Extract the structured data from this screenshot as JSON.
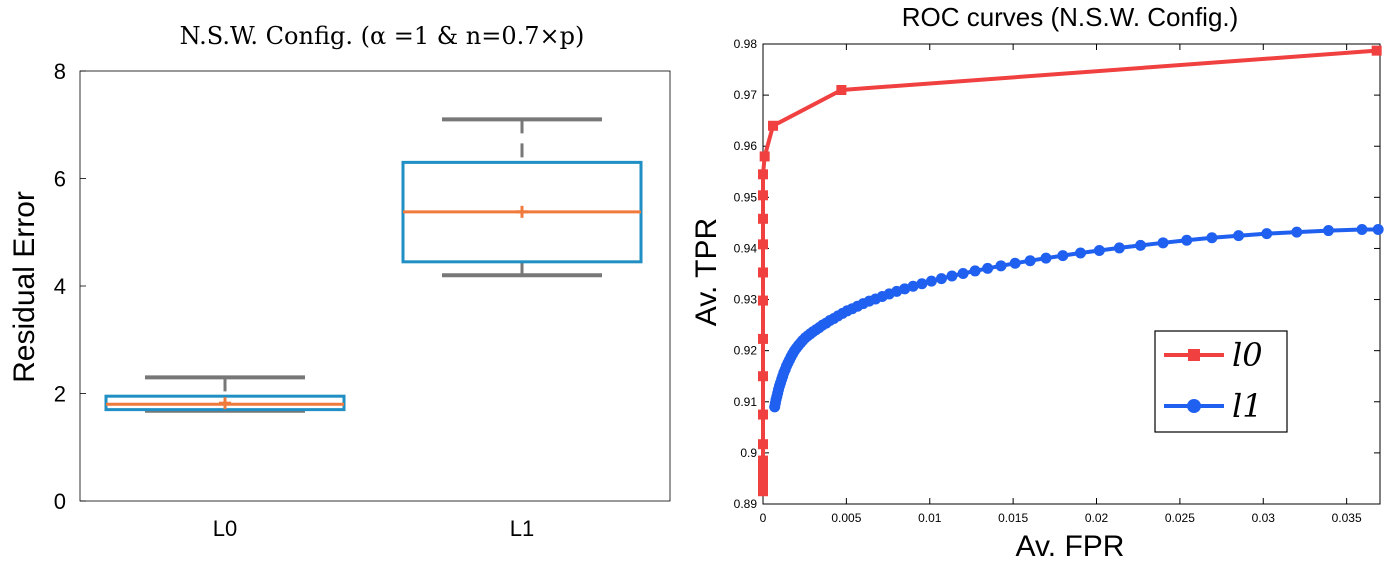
{
  "chart_data": [
    {
      "type": "box",
      "title": "N.S.W. Config. (α =1 & n=0.7×p)",
      "ylabel": "Residual Error",
      "xlabel": "",
      "ylim": [
        0,
        8
      ],
      "yticks": [
        "0",
        "2",
        "4",
        "6",
        "8"
      ],
      "categories": [
        "L0",
        "L1"
      ],
      "boxes": [
        {
          "name": "L0",
          "whisker_low": 1.68,
          "q1": 1.7,
          "median": 1.8,
          "mean": 1.82,
          "q3": 1.95,
          "whisker_high": 2.3
        },
        {
          "name": "L1",
          "whisker_low": 4.2,
          "q1": 4.45,
          "median": 5.38,
          "mean": 5.38,
          "q3": 6.3,
          "whisker_high": 7.1
        }
      ],
      "colors": {
        "box": "#1f8fc4",
        "median": "#f07a3c",
        "whisker": "#777777"
      }
    },
    {
      "type": "line",
      "title": "ROC curves (N.S.W. Config.)",
      "xlabel": "Av. FPR",
      "ylabel": "Av. TPR",
      "xlim": [
        0,
        0.037
      ],
      "ylim": [
        0.89,
        0.98
      ],
      "xticks": [
        "0",
        "0.005",
        "0.01",
        "0.015",
        "0.02",
        "0.025",
        "0.03",
        "0.035"
      ],
      "yticks": [
        "0.89",
        "0.9",
        "0.91",
        "0.92",
        "0.93",
        "0.94",
        "0.95",
        "0.96",
        "0.97",
        "0.98"
      ],
      "legend_position": "bottom-right",
      "series": [
        {
          "name": "l0",
          "color": "#f04040",
          "marker": "square",
          "x": [
            0,
            0,
            0,
            0,
            0,
            0,
            0,
            0,
            0,
            0,
            0,
            0,
            0,
            0,
            0,
            0.0001,
            0.0006,
            0.0047,
            0.0368
          ],
          "y": [
            0.8925,
            0.894,
            0.8955,
            0.897,
            0.8985,
            0.9017,
            0.9075,
            0.915,
            0.9223,
            0.9298,
            0.9353,
            0.9408,
            0.9458,
            0.9504,
            0.9545,
            0.958,
            0.964,
            0.971,
            0.9787
          ]
        },
        {
          "name": "l1",
          "color": "#2060f0",
          "marker": "circle",
          "x": [
            0.0007,
            0.00074,
            0.00078,
            0.00083,
            0.00088,
            0.00093,
            0.00099,
            0.00105,
            0.00112,
            0.00118,
            0.00125,
            0.00133,
            0.00141,
            0.0015,
            0.00159,
            0.00168,
            0.00178,
            0.00189,
            0.002,
            0.00212,
            0.00225,
            0.00238,
            0.00253,
            0.00268,
            0.00284,
            0.003,
            0.00318,
            0.00337,
            0.00357,
            0.00379,
            0.00401,
            0.00425,
            0.0045,
            0.00477,
            0.00505,
            0.00535,
            0.00567,
            0.00601,
            0.00637,
            0.00675,
            0.00715,
            0.00757,
            0.00802,
            0.0085,
            0.009,
            0.00953,
            0.0101,
            0.0107,
            0.01133,
            0.012,
            0.01272,
            0.01347,
            0.01427,
            0.01512,
            0.01602,
            0.01697,
            0.01798,
            0.01904,
            0.02017,
            0.02137,
            0.02264,
            0.02399,
            0.02541,
            0.02692,
            0.02852,
            0.03021,
            0.03201,
            0.03391,
            0.03592,
            0.03689
          ],
          "y": [
            0.909,
            0.9097,
            0.9104,
            0.911,
            0.9117,
            0.9124,
            0.9131,
            0.9137,
            0.9144,
            0.915,
            0.9157,
            0.9163,
            0.917,
            0.9176,
            0.9182,
            0.9188,
            0.9194,
            0.92,
            0.9205,
            0.921,
            0.9215,
            0.922,
            0.9225,
            0.9229,
            0.9233,
            0.9237,
            0.9241,
            0.9245,
            0.925,
            0.9254,
            0.9259,
            0.9263,
            0.9268,
            0.9273,
            0.9278,
            0.9282,
            0.9287,
            0.9292,
            0.9297,
            0.9301,
            0.9306,
            0.9311,
            0.9316,
            0.9321,
            0.9326,
            0.9331,
            0.9336,
            0.9341,
            0.9346,
            0.9351,
            0.9356,
            0.9361,
            0.9366,
            0.9371,
            0.9376,
            0.9381,
            0.9386,
            0.9391,
            0.9396,
            0.9401,
            0.9406,
            0.9411,
            0.9416,
            0.9421,
            0.9425,
            0.9429,
            0.9432,
            0.9435,
            0.9437,
            0.9437
          ]
        }
      ]
    }
  ]
}
